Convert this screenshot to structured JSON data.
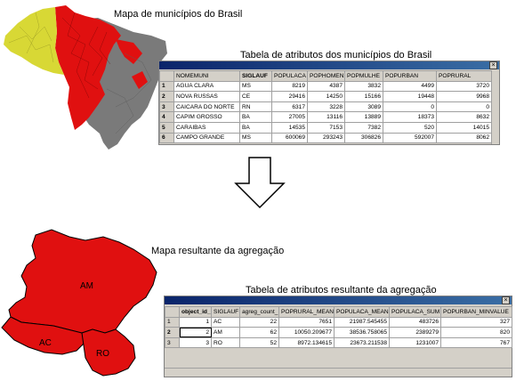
{
  "top": {
    "map_caption": "Mapa de municípios do Brasil",
    "table_caption": "Tabela de atributos dos municípios do Brasil",
    "close_glyph": "×",
    "columns": [
      "",
      "NOMEMUNI",
      "SIGLAUF",
      "POPULACA",
      "POPHOMEN",
      "POPMULHE",
      "POPURBAN",
      "POPRURAL"
    ],
    "rows": [
      [
        "1",
        "AGUA CLARA",
        "MS",
        "8219",
        "4387",
        "3832",
        "4499",
        "3720"
      ],
      [
        "2",
        "NOVA RUSSAS",
        "CE",
        "29416",
        "14250",
        "15166",
        "19448",
        "9968"
      ],
      [
        "3",
        "CAICARA DO NORTE",
        "RN",
        "6317",
        "3228",
        "3089",
        "0",
        "0"
      ],
      [
        "4",
        "CAPIM GROSSO",
        "BA",
        "27005",
        "13116",
        "13889",
        "18373",
        "8632"
      ],
      [
        "5",
        "CARAIBAS",
        "BA",
        "14535",
        "7153",
        "7382",
        "520",
        "14015"
      ],
      [
        "6",
        "CAMPO GRANDE",
        "MS",
        "600069",
        "293243",
        "306826",
        "592007",
        "8062"
      ]
    ]
  },
  "bottom": {
    "map_caption": "Mapa resultante da agregação",
    "table_caption": "Tabela de atributos resultante da agregação",
    "close_glyph": "×",
    "labels": {
      "am": "AM",
      "ac": "AC",
      "ro": "RO"
    },
    "columns": [
      "",
      "object_id_",
      "SIGLAUF",
      "agreg_count_",
      "POPRURAL_MEAN",
      "POPULACA_MEAN",
      "POPULACA_SUM",
      "POPURBAN_MINVALUE"
    ],
    "rows": [
      [
        "1",
        "1",
        "AC",
        "22",
        "7651",
        "21987.545455",
        "483726",
        "327"
      ],
      [
        "2",
        "2",
        "AM",
        "62",
        "10050.209677",
        "38536.758065",
        "2389279",
        "820"
      ],
      [
        "3",
        "3",
        "RO",
        "52",
        "8972.134615",
        "23673.211538",
        "1231007",
        "767"
      ]
    ]
  },
  "colors": {
    "red": "#e01010",
    "yellow": "#d8d835",
    "gray": "#7a7a7a",
    "titlebar": "#0a246a"
  }
}
